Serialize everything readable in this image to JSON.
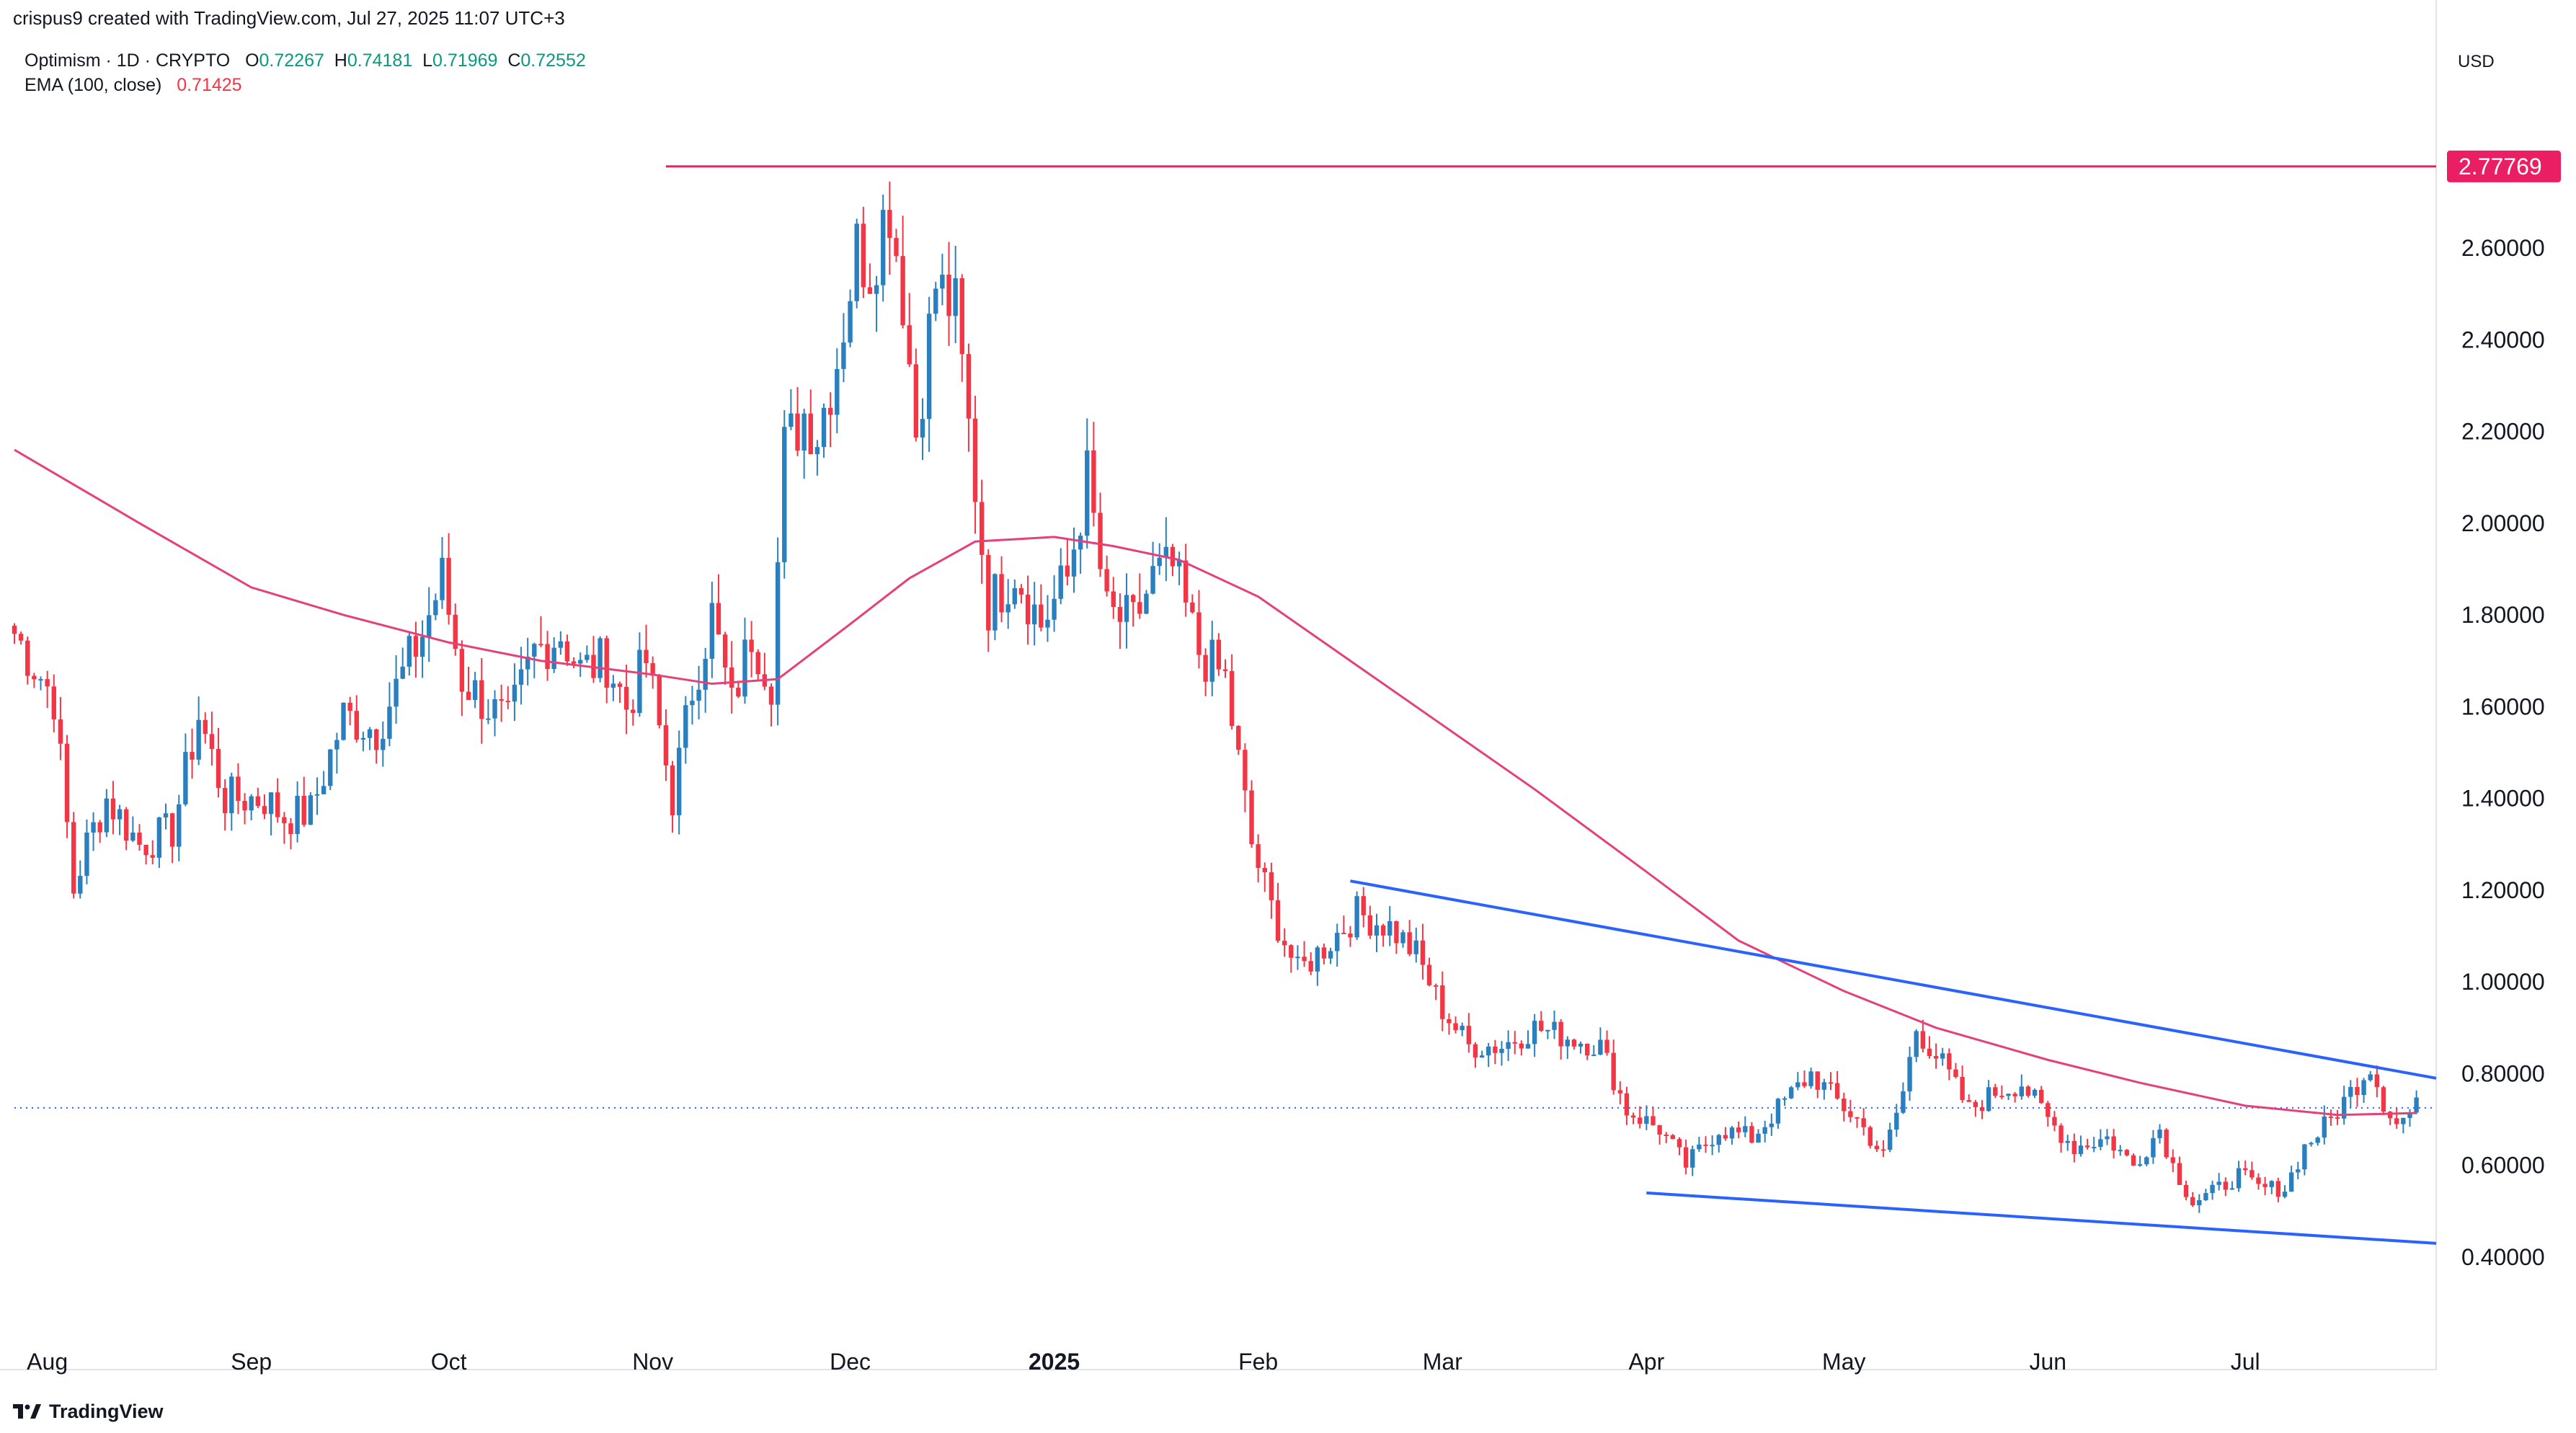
{
  "header": {
    "created_by": "crispus9 created with TradingView.com, Jul 27, 2025 11:07 UTC+3",
    "symbol": "Optimism · 1D · CRYPTO",
    "ohlc": {
      "o_label": "O",
      "o": "0.72267",
      "h_label": "H",
      "h": "0.74181",
      "l_label": "L",
      "l": "0.71969",
      "c_label": "C",
      "c": "0.72552"
    },
    "ema_label": "EMA (100, close)",
    "ema_value": "0.71425",
    "currency": "USD"
  },
  "brand": {
    "name": "TradingView"
  },
  "chart_data": {
    "type": "candlestick",
    "title": "",
    "xlabel": "",
    "ylabel": "",
    "ylim": [
      0.26,
      2.96
    ],
    "y_ticks": [
      "2.60000",
      "2.40000",
      "2.20000",
      "2.00000",
      "1.80000",
      "1.60000",
      "1.40000",
      "1.20000",
      "1.00000",
      "0.80000",
      "0.60000",
      "0.40000"
    ],
    "x_range": [
      "2024-07-27",
      "2025-07-30"
    ],
    "x_ticks": [
      {
        "date": "2024-08-01",
        "label": "Aug",
        "bold": false
      },
      {
        "date": "2024-09-01",
        "label": "Sep",
        "bold": false
      },
      {
        "date": "2024-10-01",
        "label": "Oct",
        "bold": false
      },
      {
        "date": "2024-11-01",
        "label": "Nov",
        "bold": false
      },
      {
        "date": "2024-12-01",
        "label": "Dec",
        "bold": false
      },
      {
        "date": "2025-01-01",
        "label": "2025",
        "bold": true
      },
      {
        "date": "2025-02-01",
        "label": "Feb",
        "bold": false
      },
      {
        "date": "2025-03-01",
        "label": "Mar",
        "bold": false
      },
      {
        "date": "2025-04-01",
        "label": "Apr",
        "bold": false
      },
      {
        "date": "2025-05-01",
        "label": "May",
        "bold": false
      },
      {
        "date": "2025-06-01",
        "label": "Jun",
        "bold": false
      },
      {
        "date": "2025-07-01",
        "label": "Jul",
        "bold": false
      }
    ],
    "grid": false,
    "price_path": [
      [
        "2024-07-27",
        1.76
      ],
      [
        "2024-08-02",
        1.62
      ],
      [
        "2024-08-05",
        1.2
      ],
      [
        "2024-08-07",
        1.3
      ],
      [
        "2024-08-10",
        1.4
      ],
      [
        "2024-08-15",
        1.3
      ],
      [
        "2024-08-20",
        1.33
      ],
      [
        "2024-08-24",
        1.58
      ],
      [
        "2024-08-28",
        1.4
      ],
      [
        "2024-09-03",
        1.4
      ],
      [
        "2024-09-06",
        1.36
      ],
      [
        "2024-09-10",
        1.37
      ],
      [
        "2024-09-15",
        1.58
      ],
      [
        "2024-09-20",
        1.55
      ],
      [
        "2024-09-27",
        1.76
      ],
      [
        "2024-09-30",
        1.88
      ],
      [
        "2024-10-03",
        1.66
      ],
      [
        "2024-10-07",
        1.6
      ],
      [
        "2024-10-10",
        1.56
      ],
      [
        "2024-10-14",
        1.72
      ],
      [
        "2024-10-18",
        1.76
      ],
      [
        "2024-10-21",
        1.68
      ],
      [
        "2024-10-25",
        1.7
      ],
      [
        "2024-10-28",
        1.6
      ],
      [
        "2024-10-31",
        1.7
      ],
      [
        "2024-11-04",
        1.4
      ],
      [
        "2024-11-07",
        1.64
      ],
      [
        "2024-11-10",
        1.8
      ],
      [
        "2024-11-13",
        1.6
      ],
      [
        "2024-11-16",
        1.76
      ],
      [
        "2024-11-19",
        1.66
      ],
      [
        "2024-11-21",
        2.16
      ],
      [
        "2024-11-24",
        2.24
      ],
      [
        "2024-11-26",
        2.2
      ],
      [
        "2024-11-29",
        2.36
      ],
      [
        "2024-12-02",
        2.6
      ],
      [
        "2024-12-04",
        2.56
      ],
      [
        "2024-12-06",
        2.66
      ],
      [
        "2024-12-07",
        2.7
      ],
      [
        "2024-12-09",
        2.5
      ],
      [
        "2024-12-11",
        2.2
      ],
      [
        "2024-12-14",
        2.52
      ],
      [
        "2024-12-17",
        2.46
      ],
      [
        "2024-12-20",
        2.08
      ],
      [
        "2024-12-22",
        1.82
      ],
      [
        "2024-12-26",
        1.9
      ],
      [
        "2024-12-30",
        1.78
      ],
      [
        "2025-01-03",
        1.88
      ],
      [
        "2025-01-06",
        2.1
      ],
      [
        "2025-01-09",
        1.8
      ],
      [
        "2025-01-13",
        1.78
      ],
      [
        "2025-01-16",
        1.88
      ],
      [
        "2025-01-19",
        1.9
      ],
      [
        "2025-01-23",
        1.72
      ],
      [
        "2025-01-27",
        1.66
      ],
      [
        "2025-01-31",
        1.3
      ],
      [
        "2025-02-03",
        1.16
      ],
      [
        "2025-02-07",
        1.02
      ],
      [
        "2025-02-12",
        1.09
      ],
      [
        "2025-02-16",
        1.15
      ],
      [
        "2025-02-21",
        1.12
      ],
      [
        "2025-02-25",
        1.06
      ],
      [
        "2025-03-01",
        0.94
      ],
      [
        "2025-03-05",
        0.86
      ],
      [
        "2025-03-10",
        0.86
      ],
      [
        "2025-03-15",
        0.9
      ],
      [
        "2025-03-20",
        0.88
      ],
      [
        "2025-03-25",
        0.86
      ],
      [
        "2025-03-29",
        0.72
      ],
      [
        "2025-04-03",
        0.68
      ],
      [
        "2025-04-07",
        0.6
      ],
      [
        "2025-04-12",
        0.68
      ],
      [
        "2025-04-17",
        0.66
      ],
      [
        "2025-04-22",
        0.74
      ],
      [
        "2025-04-26",
        0.8
      ],
      [
        "2025-04-30",
        0.74
      ],
      [
        "2025-05-03",
        0.7
      ],
      [
        "2025-05-07",
        0.62
      ],
      [
        "2025-05-10",
        0.76
      ],
      [
        "2025-05-12",
        0.9
      ],
      [
        "2025-05-16",
        0.82
      ],
      [
        "2025-05-20",
        0.72
      ],
      [
        "2025-05-24",
        0.76
      ],
      [
        "2025-05-28",
        0.78
      ],
      [
        "2025-06-01",
        0.7
      ],
      [
        "2025-06-05",
        0.64
      ],
      [
        "2025-06-10",
        0.66
      ],
      [
        "2025-06-14",
        0.6
      ],
      [
        "2025-06-18",
        0.68
      ],
      [
        "2025-06-20",
        0.6
      ],
      [
        "2025-06-23",
        0.52
      ],
      [
        "2025-06-26",
        0.54
      ],
      [
        "2025-06-30",
        0.58
      ],
      [
        "2025-07-03",
        0.55
      ],
      [
        "2025-07-07",
        0.55
      ],
      [
        "2025-07-10",
        0.64
      ],
      [
        "2025-07-14",
        0.7
      ],
      [
        "2025-07-18",
        0.78
      ],
      [
        "2025-07-20",
        0.82
      ],
      [
        "2025-07-22",
        0.74
      ],
      [
        "2025-07-24",
        0.69
      ],
      [
        "2025-07-27",
        0.7255
      ]
    ],
    "ema_path": [
      [
        "2024-07-27",
        2.16
      ],
      [
        "2024-08-15",
        2.0
      ],
      [
        "2024-09-01",
        1.86
      ],
      [
        "2024-09-15",
        1.8
      ],
      [
        "2024-10-01",
        1.74
      ],
      [
        "2024-10-15",
        1.7
      ],
      [
        "2024-11-01",
        1.67
      ],
      [
        "2024-11-10",
        1.65
      ],
      [
        "2024-11-20",
        1.66
      ],
      [
        "2024-12-01",
        1.78
      ],
      [
        "2024-12-10",
        1.88
      ],
      [
        "2024-12-20",
        1.96
      ],
      [
        "2025-01-01",
        1.97
      ],
      [
        "2025-01-10",
        1.95
      ],
      [
        "2025-01-20",
        1.92
      ],
      [
        "2025-02-01",
        1.84
      ],
      [
        "2025-02-15",
        1.7
      ],
      [
        "2025-03-01",
        1.56
      ],
      [
        "2025-03-15",
        1.42
      ],
      [
        "2025-04-01",
        1.24
      ],
      [
        "2025-04-15",
        1.09
      ],
      [
        "2025-05-01",
        0.98
      ],
      [
        "2025-05-15",
        0.9
      ],
      [
        "2025-06-01",
        0.83
      ],
      [
        "2025-06-15",
        0.78
      ],
      [
        "2025-07-01",
        0.73
      ],
      [
        "2025-07-15",
        0.71
      ],
      [
        "2025-07-27",
        0.714
      ]
    ],
    "trendlines": [
      {
        "name": "upper",
        "from": [
          "2025-02-15",
          1.22
        ],
        "to": [
          "2025-07-30",
          0.79
        ]
      },
      {
        "name": "lower",
        "from": [
          "2025-04-01",
          0.54
        ],
        "to": [
          "2025-07-30",
          0.43
        ]
      }
    ],
    "resistance": {
      "value": 2.77769,
      "label": "2.77769",
      "from": "2024-11-03"
    },
    "last_price": 0.7255,
    "colors": {
      "up": "#2a7fbf",
      "down": "#f23645",
      "ema": "#e6407a",
      "trendline": "#2962ff",
      "resistance": "#e91e63",
      "last_price_line": "#2962ff"
    }
  }
}
